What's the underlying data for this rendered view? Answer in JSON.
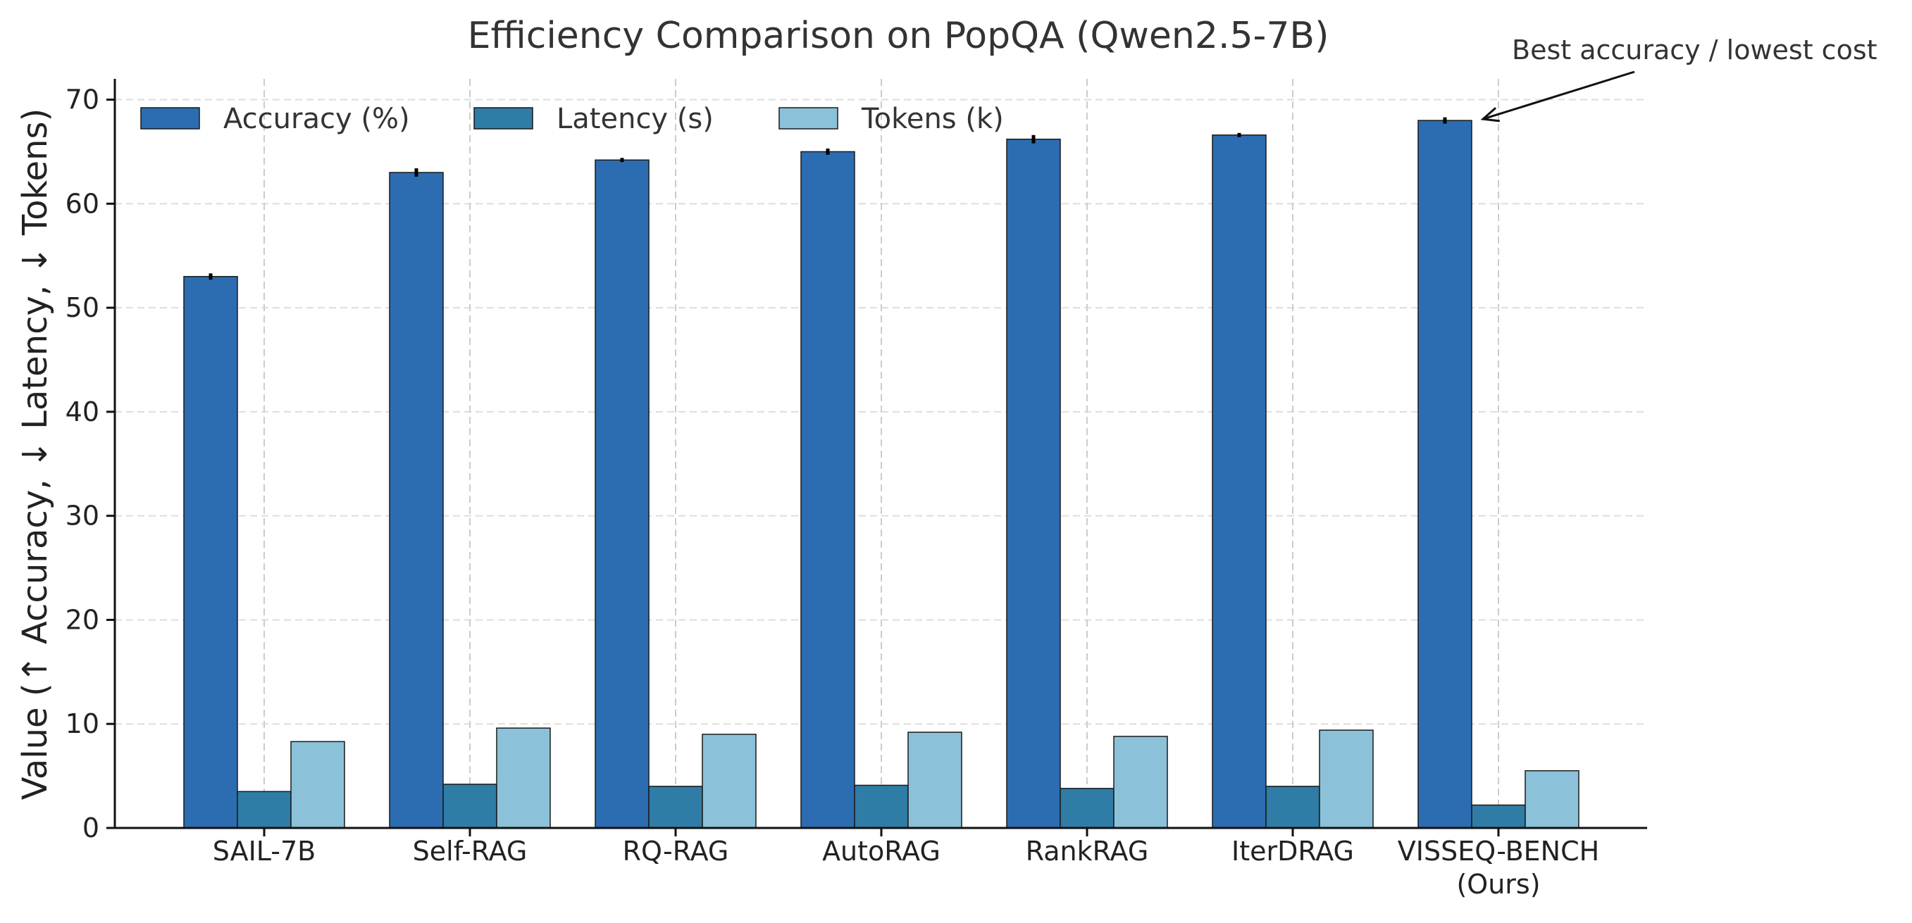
{
  "chart_data": {
    "type": "bar",
    "title": "Efficiency Comparison on PopQA (Qwen2.5-7B)",
    "xlabel": "",
    "ylabel": "Value  (↑ Accuracy, ↓ Latency, ↓ Tokens)",
    "ylim": [
      0,
      72
    ],
    "yticks": [
      0,
      10,
      20,
      30,
      40,
      50,
      60,
      70
    ],
    "grid": true,
    "legend_position": "top-left",
    "categories": [
      [
        "SAIL-7B"
      ],
      [
        "Self-RAG"
      ],
      [
        "RQ-RAG"
      ],
      [
        "AutoRAG"
      ],
      [
        "RankRAG"
      ],
      [
        "IterDRAG"
      ],
      [
        "VISSEQ-BENCH",
        "(Ours)"
      ]
    ],
    "series": [
      {
        "name": "Accuracy (%)",
        "color": "#2c6db1",
        "values": [
          53.0,
          63.0,
          64.2,
          65.0,
          66.2,
          66.6,
          68.0
        ],
        "error": [
          0.3,
          0.4,
          0.2,
          0.3,
          0.4,
          0.2,
          0.3
        ]
      },
      {
        "name": "Latency (s)",
        "color": "#2f7ca6",
        "values": [
          3.5,
          4.2,
          4.0,
          4.1,
          3.8,
          4.0,
          2.2
        ]
      },
      {
        "name": "Tokens (k)",
        "color": "#8cc2d9",
        "values": [
          8.3,
          9.6,
          9.0,
          9.2,
          8.8,
          9.4,
          5.5
        ]
      }
    ],
    "annotation": {
      "text": "Best accuracy / lowest cost",
      "target_category_index": 6,
      "target_value": 68.0
    }
  }
}
